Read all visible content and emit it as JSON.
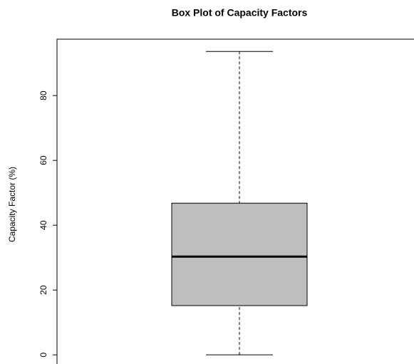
{
  "chart_data": {
    "type": "box",
    "title": "Box Plot of Capacity Factors",
    "ylabel": "Capacity Factor (%)",
    "boxes": [
      {
        "min": 0,
        "q1": 15.2,
        "median": 30.3,
        "q3": 46.8,
        "max": 93.6
      }
    ],
    "color": "#bebebe",
    "ylim": [
      -3.7,
      97.4
    ],
    "yticks": [
      0,
      20,
      40,
      60,
      80
    ]
  }
}
